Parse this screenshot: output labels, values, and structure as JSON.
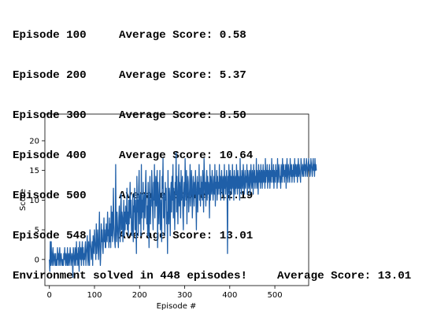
{
  "log": {
    "lines": [
      {
        "episode": "Episode 100",
        "score": "Average Score: 0.58"
      },
      {
        "episode": "Episode 200",
        "score": "Average Score: 5.37"
      },
      {
        "episode": "Episode 300",
        "score": "Average Score: 8.50"
      },
      {
        "episode": "Episode 400",
        "score": "Average Score: 10.64"
      },
      {
        "episode": "Episode 500",
        "score": "Average Score: 12.19"
      },
      {
        "episode": "Episode 548",
        "score": "Average Score: 13.01"
      }
    ],
    "solved": "Environment solved in 448 episodes!",
    "solved_score": "Average Score: 13.01"
  },
  "chart_data": {
    "type": "line",
    "xlabel": "Episode #",
    "ylabel": "Score",
    "xlim": [
      -10,
      575
    ],
    "ylim": [
      -4.4,
      24.5
    ],
    "xticks": [
      0,
      100,
      200,
      300,
      400,
      500
    ],
    "yticks": [
      0,
      5,
      10,
      15,
      20
    ],
    "grid": false,
    "line_color": "#1f5fa8",
    "series": [
      {
        "values": [
          0,
          -2,
          3,
          -1,
          3,
          0,
          -1,
          1,
          2,
          -1,
          0,
          1,
          0,
          -1,
          1,
          -1,
          0,
          -1,
          2,
          0,
          1,
          -1,
          1,
          2,
          -1,
          0,
          1,
          0,
          -1,
          0,
          -1,
          -1,
          1,
          0,
          2,
          0,
          -1,
          1,
          0,
          -1,
          2,
          -1,
          0,
          1,
          -1,
          0,
          2,
          1,
          -1,
          0,
          1,
          0,
          -3,
          2,
          1,
          0,
          -1,
          2,
          1,
          -1,
          3,
          0,
          1,
          -1,
          2,
          0,
          -2,
          3,
          1,
          0,
          2,
          -1,
          1,
          3,
          0,
          2,
          -1,
          1,
          0,
          2,
          3,
          -1,
          1,
          2,
          4,
          0,
          -1,
          3,
          1,
          -1,
          5,
          3,
          2,
          0,
          1,
          3,
          -1,
          4,
          2,
          1,
          5,
          3,
          2,
          0,
          6,
          1,
          3,
          5,
          2,
          0,
          4,
          8,
          2,
          -1,
          1,
          6,
          3,
          5,
          2,
          1,
          4,
          7,
          3,
          5,
          2,
          2,
          6,
          4,
          3,
          8,
          4,
          5,
          2,
          7,
          3,
          6,
          2,
          9,
          4,
          8,
          3,
          5,
          12,
          6,
          4,
          3,
          2,
          16,
          5,
          3,
          8,
          6,
          4,
          2,
          7,
          9,
          5,
          3,
          9,
          11,
          5,
          8,
          7,
          3,
          6,
          10,
          4,
          8,
          5,
          9,
          7,
          6,
          12,
          5,
          8,
          4,
          10,
          6,
          9,
          13,
          7,
          10,
          5,
          4,
          6,
          11,
          3,
          9,
          8,
          12,
          5,
          10,
          6,
          1,
          14,
          8,
          10,
          4,
          12,
          15,
          6,
          9,
          11,
          4,
          16,
          7,
          10,
          8,
          13,
          5,
          9,
          11,
          7,
          12,
          15,
          10,
          6,
          9,
          4,
          13,
          8,
          2,
          11,
          14,
          6,
          10,
          9,
          15,
          12,
          8,
          5,
          13,
          10,
          16,
          7,
          11,
          14,
          9,
          12,
          15,
          2,
          13,
          10,
          6,
          11,
          15,
          5,
          10,
          8,
          3,
          14,
          12,
          17,
          7,
          11,
          9,
          4,
          13,
          10,
          12,
          6,
          8,
          1,
          15,
          9,
          6,
          12,
          10,
          4,
          11,
          13,
          8,
          14,
          10,
          16,
          7,
          12,
          9,
          5,
          13,
          11,
          18,
          8,
          14,
          10,
          6,
          12,
          16,
          9,
          13,
          11,
          7,
          15,
          10,
          12,
          14,
          8,
          5,
          11,
          13,
          9,
          17,
          12,
          10,
          15,
          6,
          11,
          14,
          13,
          8,
          10,
          12,
          16,
          9,
          11,
          15,
          13,
          7,
          10,
          14,
          12,
          9,
          13,
          11,
          15,
          10,
          5,
          12,
          14,
          8,
          13,
          11,
          16,
          10,
          12,
          9,
          14,
          11,
          13,
          10,
          15,
          12,
          8,
          17,
          14,
          11,
          13,
          9,
          12,
          15,
          10,
          14,
          11,
          13,
          12,
          7,
          16,
          10,
          14,
          12,
          11,
          15,
          13,
          10,
          12,
          14,
          11,
          16,
          9,
          13,
          12,
          15,
          10,
          14,
          11,
          13,
          12,
          16,
          11,
          14,
          10,
          13,
          15,
          12,
          11,
          14,
          13,
          10,
          16,
          12,
          14,
          11,
          13,
          15,
          12,
          1,
          14,
          11,
          16,
          13,
          10,
          15,
          12,
          14,
          11,
          13,
          16,
          12,
          14,
          10,
          15,
          13,
          11,
          14,
          12,
          16,
          13,
          11,
          15,
          12,
          14,
          13,
          10,
          17,
          12,
          14,
          11,
          15,
          13,
          12,
          16,
          14,
          11,
          13,
          15,
          12,
          14,
          13,
          16,
          11,
          15,
          14,
          12,
          13,
          15,
          11,
          14,
          16,
          13,
          12,
          15,
          14,
          11,
          16,
          13,
          15,
          12,
          14,
          13,
          17,
          12,
          15,
          14,
          11,
          16,
          13,
          15,
          14,
          12,
          16,
          13,
          15,
          12,
          14,
          16,
          13,
          15,
          14,
          12,
          17,
          13,
          15,
          14,
          16,
          12,
          15,
          13,
          14,
          16,
          12,
          15,
          14,
          13,
          17,
          14,
          15,
          13,
          16,
          12,
          15,
          14,
          13,
          16,
          14,
          15,
          12,
          17,
          13,
          14,
          16,
          15,
          13,
          14,
          12,
          16,
          15,
          13,
          17,
          14,
          15,
          16,
          13,
          15,
          14,
          16,
          12,
          15,
          17,
          14,
          13,
          16,
          15,
          14,
          13,
          17,
          15,
          14,
          16,
          13,
          15,
          14,
          16,
          15,
          13,
          17,
          14,
          16,
          15,
          14,
          16,
          13,
          15,
          17,
          14,
          16,
          15,
          14,
          13,
          17,
          16,
          15,
          14,
          16,
          15,
          14,
          17,
          15,
          16,
          14,
          15,
          17,
          16,
          14,
          15,
          16,
          17,
          15,
          16,
          14,
          15,
          17,
          16,
          15,
          14,
          16,
          17,
          15,
          16,
          14,
          17,
          15,
          16,
          15
        ]
      }
    ]
  }
}
